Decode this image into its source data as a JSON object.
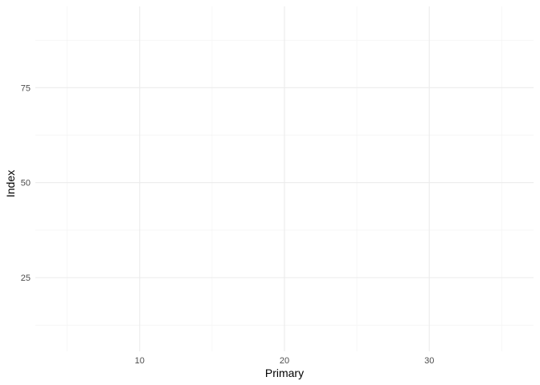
{
  "chart_data": {
    "type": "scatter",
    "title": "",
    "xlabel": "Primary",
    "ylabel": "Index",
    "xlim": [
      2.8,
      37.2
    ],
    "ylim": [
      5.6,
      96.4
    ],
    "x_ticks": [
      10,
      20,
      30
    ],
    "x_minor_ticks": [
      5,
      15,
      25,
      35
    ],
    "y_ticks": [
      25,
      50,
      75
    ],
    "y_minor_ticks": [
      12.5,
      37.5,
      62.5,
      87.5
    ],
    "grid": true,
    "series": [],
    "colors": {
      "grid_major": "#ebebeb",
      "grid_minor": "#f2f2f2",
      "tick_label": "#4d4d4d",
      "axis_title": "#000000",
      "background": "#ffffff"
    }
  }
}
